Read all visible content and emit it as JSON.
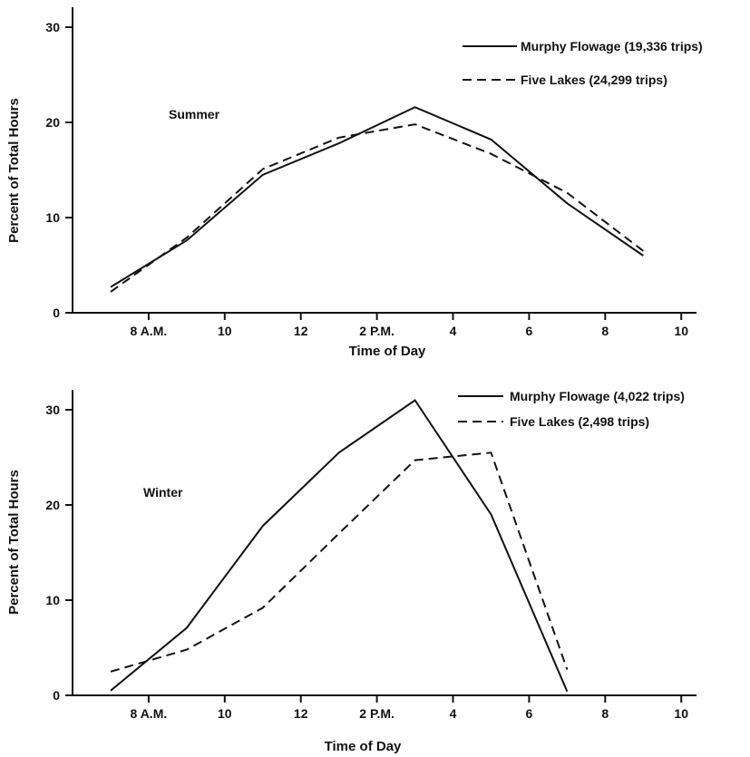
{
  "chart_data": [
    {
      "type": "line",
      "panel_label": "Summer",
      "xlabel": "Time of Day",
      "ylabel": "Percent of Total Hours",
      "ylim": [
        0,
        30
      ],
      "y_ticks": [
        0,
        10,
        20,
        30
      ],
      "x_ticks": [
        {
          "x": 8,
          "label": "8 A.M."
        },
        {
          "x": 10,
          "label": "10"
        },
        {
          "x": 12,
          "label": "12"
        },
        {
          "x": 14,
          "label": "2 P.M."
        },
        {
          "x": 16,
          "label": "4"
        },
        {
          "x": 18,
          "label": "6"
        },
        {
          "x": 20,
          "label": "8"
        },
        {
          "x": 22,
          "label": "10"
        }
      ],
      "xlim": [
        6,
        22.4
      ],
      "legend_position": "top-right",
      "series": [
        {
          "name": "Murphy Flowage (19,336 trips)",
          "style": "solid",
          "x": [
            7,
            9,
            11,
            13,
            15,
            17,
            19,
            21
          ],
          "values": [
            2.7,
            7.6,
            14.5,
            17.8,
            21.6,
            18.2,
            11.5,
            6.0
          ]
        },
        {
          "name": "Five Lakes (24,299 trips)",
          "style": "dashed",
          "x": [
            7,
            9,
            11,
            13,
            15,
            17,
            19,
            21
          ],
          "values": [
            2.2,
            7.9,
            15.1,
            18.4,
            19.8,
            16.7,
            12.6,
            6.5
          ]
        }
      ]
    },
    {
      "type": "line",
      "panel_label": "Winter",
      "xlabel": "Time of Day",
      "ylabel": "Percent of Total Hours",
      "ylim": [
        0,
        30
      ],
      "y_ticks": [
        0,
        10,
        20,
        30
      ],
      "x_ticks": [
        {
          "x": 8,
          "label": "8 A.M."
        },
        {
          "x": 10,
          "label": "10"
        },
        {
          "x": 12,
          "label": "12"
        },
        {
          "x": 14,
          "label": "2 P.M."
        },
        {
          "x": 16,
          "label": "4"
        },
        {
          "x": 18,
          "label": "6"
        },
        {
          "x": 20,
          "label": "8"
        },
        {
          "x": 22,
          "label": "10"
        }
      ],
      "xlim": [
        6,
        22.4
      ],
      "legend_position": "top-right",
      "series": [
        {
          "name": "Murphy Flowage (4,022 trips)",
          "style": "solid",
          "x": [
            7,
            9,
            11,
            13,
            15,
            17,
            19
          ],
          "values": [
            0.5,
            7.1,
            17.8,
            25.5,
            31.0,
            19.0,
            0.4
          ]
        },
        {
          "name": "Five Lakes (2,498 trips)",
          "style": "dashed",
          "x": [
            7,
            9,
            11,
            13,
            15,
            17,
            19
          ],
          "values": [
            2.5,
            4.8,
            9.2,
            17.0,
            24.7,
            25.5,
            2.7
          ]
        }
      ]
    }
  ]
}
